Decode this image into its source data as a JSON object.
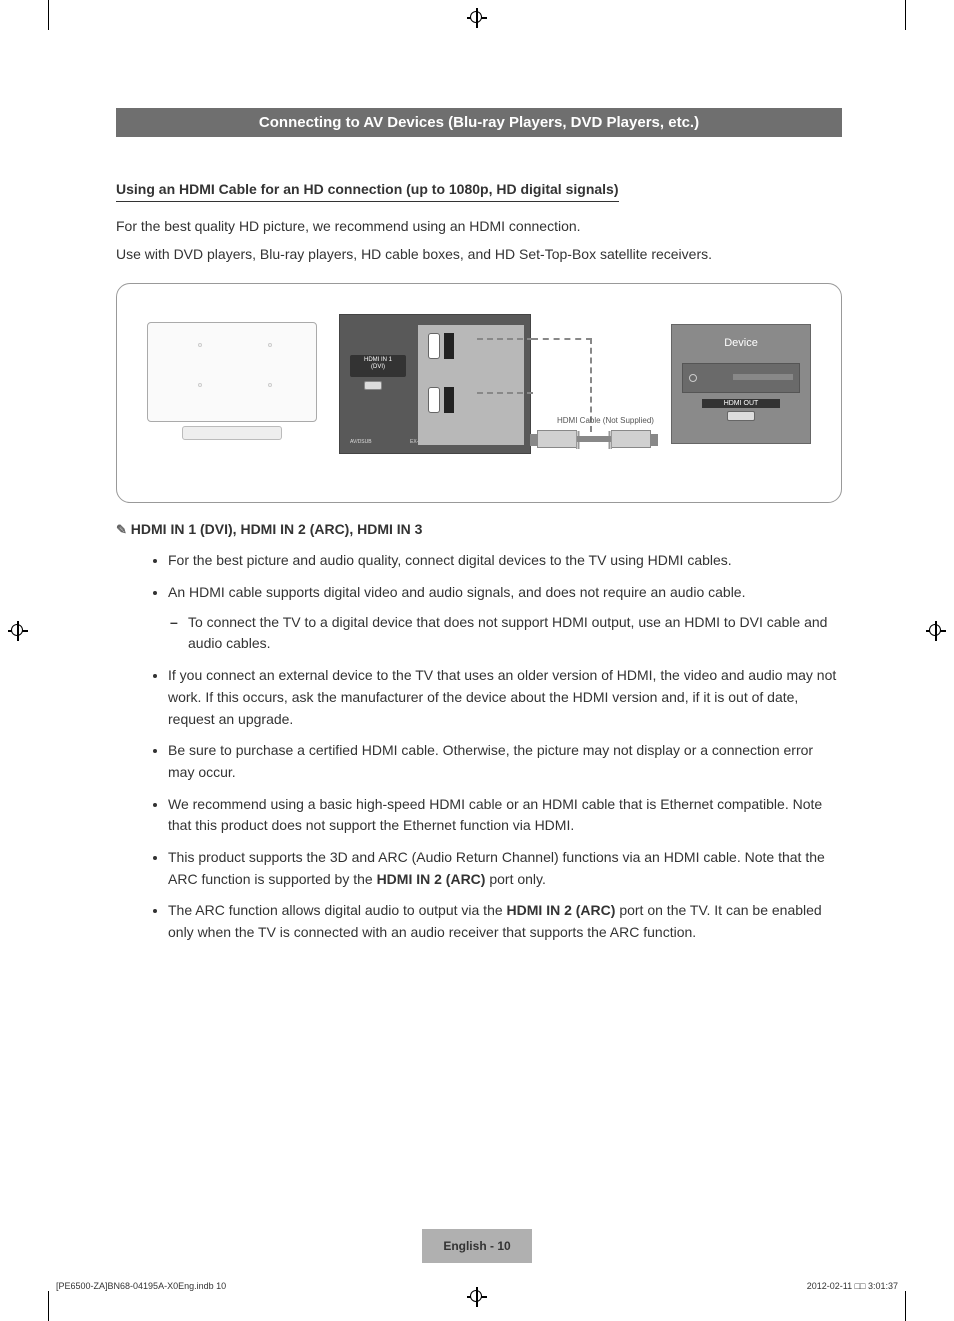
{
  "title_bar": "Connecting to AV Devices (Blu-ray Players, DVD Players, etc.)",
  "subtitle": "Using an HDMI Cable for an HD connection (up to 1080p, HD digital signals)",
  "intro_1": "For the best quality HD picture, we recommend using an HDMI connection.",
  "intro_2": "Use with DVD players, Blu-ray players, HD cable boxes, and HD Set-Top-Box satellite receivers.",
  "diagram": {
    "port_label": "HDMI IN 1\n(DVI)",
    "cable_label": "HDMI Cable (Not Supplied)",
    "device_title": "Device",
    "hdmi_out": "HDMI OUT",
    "av_dsub_label": "AV/DSUB",
    "ex_link_label": "EX-LINK"
  },
  "sub_heading": "HDMI IN 1 (DVI), HDMI IN 2 (ARC), HDMI IN 3",
  "note_prefix": "✎",
  "bullets": [
    {
      "text": "For the best picture and audio quality, connect digital devices to the TV using HDMI cables."
    },
    {
      "text": "An HDMI cable supports digital video and audio signals, and does not require an audio cable.",
      "sub": [
        "To connect the TV to a digital device that does not support HDMI output, use an HDMI to DVI cable and audio cables."
      ]
    },
    {
      "text": "If you connect an external device to the TV that uses an older version of HDMI, the video and audio may not work. If this occurs, ask the manufacturer of the device about the HDMI version and, if it is out of date, request an upgrade."
    },
    {
      "text": "Be sure to purchase a certified HDMI cable. Otherwise, the picture may not display or a connection error may occur."
    },
    {
      "text": "We recommend using a basic high-speed HDMI cable or an HDMI cable that is Ethernet compatible. Note that this product does not support the Ethernet function via HDMI."
    },
    {
      "html": "This product supports the 3D and ARC (Audio Return Channel) functions via an HDMI cable. Note that the ARC function is supported by the <strong>HDMI IN 2 (ARC)</strong> port only."
    },
    {
      "html": "The ARC function allows digital audio to output via the <strong>HDMI IN 2 (ARC)</strong> port on the TV. It can be enabled only when the TV is connected with an audio receiver that supports the ARC function."
    }
  ],
  "page_number": "English - 10",
  "footer_left": "[PE6500-ZA]BN68-04195A-X0Eng.indb   10",
  "footer_right": "2012-02-11   □□ 3:01:37",
  "colors": {
    "title_bg": "#6f6f6f",
    "panel_dark": "#595959",
    "panel_light": "#b8b8b8",
    "device_bg": "#8a8a8a",
    "page_num_bg": "#b0b0b0"
  }
}
